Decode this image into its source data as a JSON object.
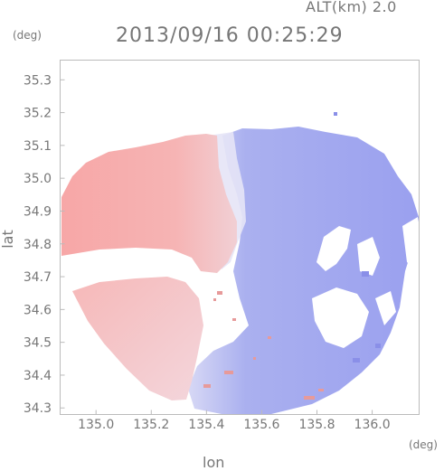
{
  "header": {
    "altitude_label": "ALT(km) 2.0",
    "timestamp": "2013/09/16 00:25:29"
  },
  "axes": {
    "y_unit": "(deg)",
    "x_unit": "(deg)",
    "xlabel": "lon",
    "ylabel": "lat"
  },
  "chart_data": {
    "type": "heatmap",
    "xlabel": "lon",
    "ylabel": "lat",
    "xlim": [
      134.87,
      136.17
    ],
    "ylim": [
      34.28,
      35.36
    ],
    "x_ticks": [
      "135.0",
      "135.2",
      "135.4",
      "135.6",
      "135.8",
      "136.0"
    ],
    "y_ticks": [
      "35.3",
      "35.2",
      "35.1",
      "35.0",
      "34.9",
      "34.8",
      "34.7",
      "34.6",
      "34.5",
      "34.4",
      "34.3"
    ],
    "colors": {
      "positive": "#f5a6a6",
      "negative": "#9ea3f0",
      "neutral": "#e8e6f5"
    }
  }
}
